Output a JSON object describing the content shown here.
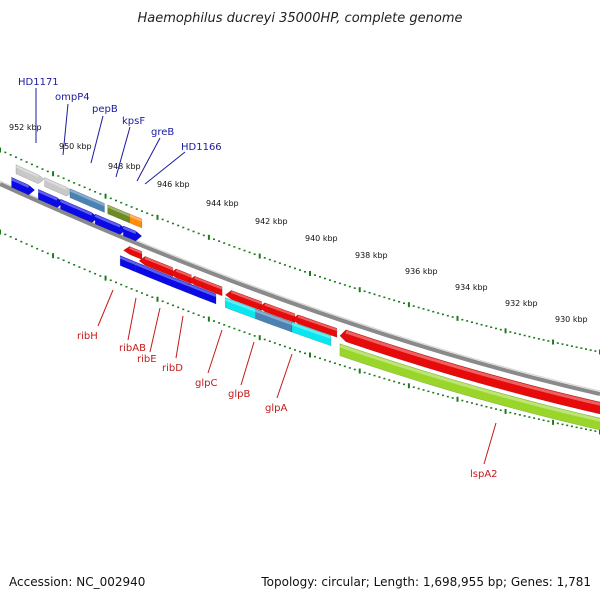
{
  "title": "Haemophilus ducreyi 35000HP, complete genome",
  "footer": {
    "accession": "Accession: NC_002940",
    "summary": "Topology: circular; Length: 1,698,955 bp; Genes: 1,781"
  },
  "colors": {
    "backbone": "#808080",
    "scale_ticks": "#1c7a1c",
    "forward_label": "#1a1aa0",
    "reverse_label": "#c41a1a",
    "blue": "#0a0ae6",
    "red": "#e60a0a",
    "grey": "#c8c8c8",
    "steel": "#4a82b4",
    "olive": "#6b8c23",
    "orange": "#ff8c0a",
    "cyan": "#0ae6f0",
    "lime": "#9ad62a"
  },
  "scale_labels": [
    "952 kbp",
    "950 kbp",
    "948 kbp",
    "946 kbp",
    "944 kbp",
    "942 kbp",
    "940 kbp",
    "938 kbp",
    "936 kbp",
    "934 kbp",
    "932 kbp",
    "930 kbp"
  ],
  "forward_gene_labels": [
    "HD1171",
    "ompP4",
    "pepB",
    "kpsF",
    "greB",
    "HD1166"
  ],
  "reverse_gene_labels": [
    "ribH",
    "ribAB",
    "ribE",
    "ribD",
    "glpC",
    "glpB",
    "glpA",
    "lspA2"
  ]
}
